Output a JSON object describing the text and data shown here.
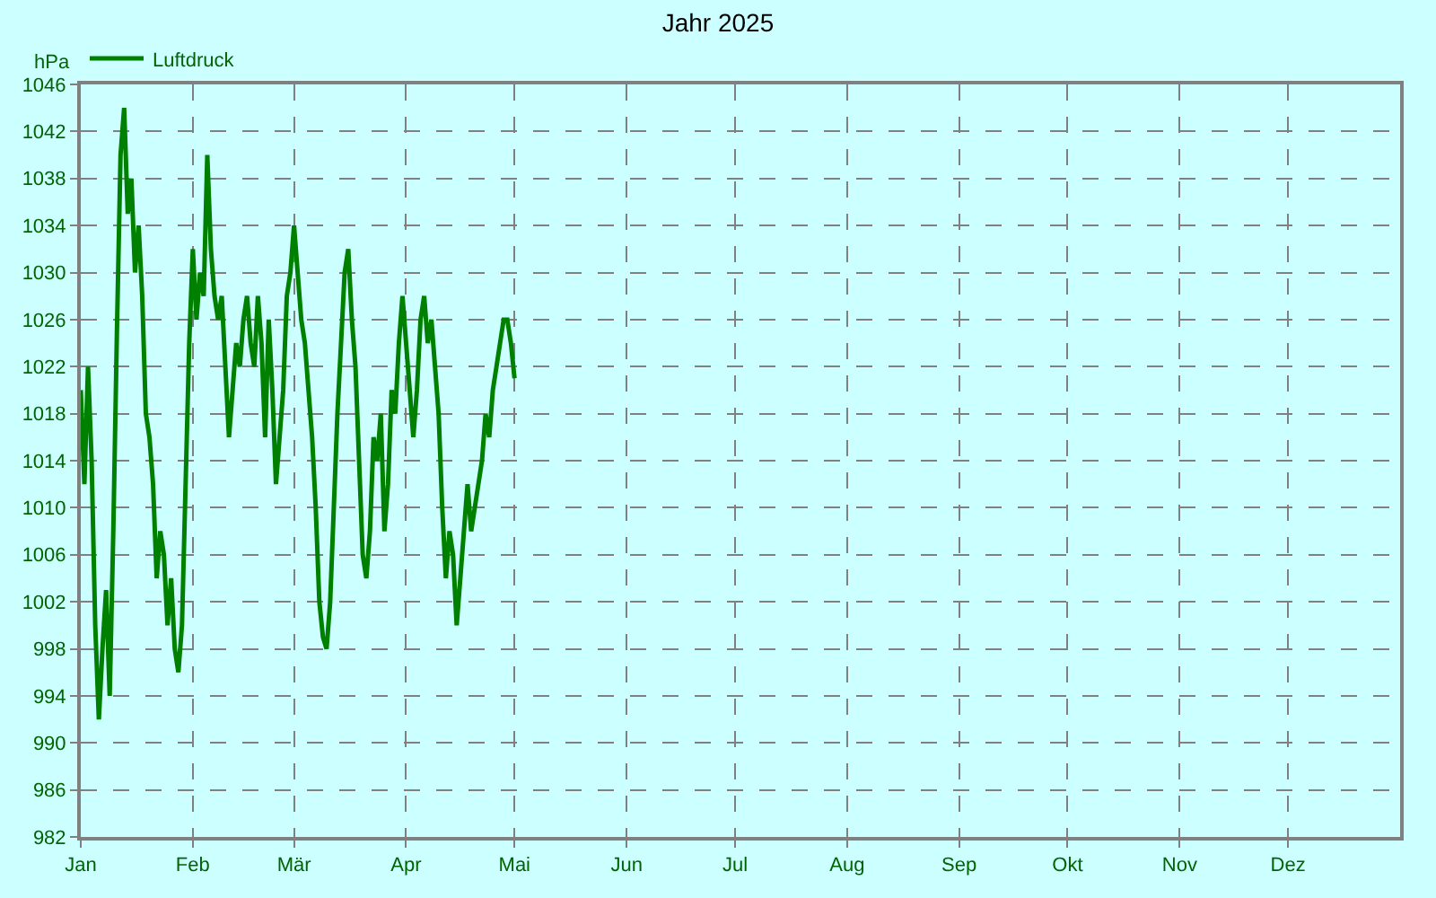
{
  "chart_data": {
    "type": "line",
    "title": "Jahr 2025",
    "ylabel": "hPa",
    "x": [
      "2025-01-01",
      "2025-01-02",
      "2025-01-03",
      "2025-01-04",
      "2025-01-05",
      "2025-01-06",
      "2025-01-07",
      "2025-01-08",
      "2025-01-09",
      "2025-01-10",
      "2025-01-11",
      "2025-01-12",
      "2025-01-13",
      "2025-01-14",
      "2025-01-15",
      "2025-01-16",
      "2025-01-17",
      "2025-01-18",
      "2025-01-19",
      "2025-01-20",
      "2025-01-21",
      "2025-01-22",
      "2025-01-23",
      "2025-01-24",
      "2025-01-25",
      "2025-01-26",
      "2025-01-27",
      "2025-01-28",
      "2025-01-29",
      "2025-01-30",
      "2025-01-31",
      "2025-02-01",
      "2025-02-02",
      "2025-02-03",
      "2025-02-04",
      "2025-02-05",
      "2025-02-06",
      "2025-02-07",
      "2025-02-08",
      "2025-02-09",
      "2025-02-10",
      "2025-02-11",
      "2025-02-12",
      "2025-02-13",
      "2025-02-14",
      "2025-02-15",
      "2025-02-16",
      "2025-02-17",
      "2025-02-18",
      "2025-02-19",
      "2025-02-20",
      "2025-02-21",
      "2025-02-22",
      "2025-02-23",
      "2025-02-24",
      "2025-02-25",
      "2025-02-26",
      "2025-02-27",
      "2025-02-28",
      "2025-03-01",
      "2025-03-02",
      "2025-03-03",
      "2025-03-04",
      "2025-03-05",
      "2025-03-06",
      "2025-03-07",
      "2025-03-08",
      "2025-03-09",
      "2025-03-10",
      "2025-03-11",
      "2025-03-12",
      "2025-03-13",
      "2025-03-14",
      "2025-03-15",
      "2025-03-16",
      "2025-03-17",
      "2025-03-18",
      "2025-03-19",
      "2025-03-20",
      "2025-03-21",
      "2025-03-22",
      "2025-03-23",
      "2025-03-24",
      "2025-03-25",
      "2025-03-26",
      "2025-03-27",
      "2025-03-28",
      "2025-03-29",
      "2025-03-30",
      "2025-03-31",
      "2025-04-01",
      "2025-04-02",
      "2025-04-03",
      "2025-04-04",
      "2025-04-05",
      "2025-04-06",
      "2025-04-07",
      "2025-04-08",
      "2025-04-09",
      "2025-04-10",
      "2025-04-11",
      "2025-04-12",
      "2025-04-13",
      "2025-04-14",
      "2025-04-15",
      "2025-04-16",
      "2025-04-17",
      "2025-04-18",
      "2025-04-19",
      "2025-04-20",
      "2025-04-21",
      "2025-04-22",
      "2025-04-23",
      "2025-04-24",
      "2025-04-25",
      "2025-04-26",
      "2025-04-27",
      "2025-04-28",
      "2025-04-29",
      "2025-04-30",
      "2025-05-01"
    ],
    "series": [
      {
        "name": "Luftdruck",
        "color": "#008000",
        "values": [
          1020,
          1012,
          1022,
          1014,
          1000,
          992,
          998,
          1003,
          994,
          1008,
          1025,
          1040,
          1044,
          1035,
          1038,
          1030,
          1034,
          1028,
          1018,
          1016,
          1012,
          1004,
          1008,
          1006,
          1000,
          1004,
          998,
          996,
          1000,
          1012,
          1024,
          1032,
          1026,
          1030,
          1028,
          1040,
          1032,
          1028,
          1026,
          1028,
          1022,
          1016,
          1020,
          1024,
          1022,
          1026,
          1028,
          1024,
          1022,
          1028,
          1024,
          1016,
          1026,
          1020,
          1012,
          1016,
          1020,
          1028,
          1030,
          1034,
          1030,
          1026,
          1024,
          1020,
          1016,
          1010,
          1002,
          999,
          998,
          1002,
          1010,
          1018,
          1024,
          1030,
          1032,
          1026,
          1022,
          1014,
          1006,
          1004,
          1008,
          1016,
          1014,
          1018,
          1008,
          1012,
          1020,
          1018,
          1024,
          1028,
          1024,
          1020,
          1016,
          1020,
          1026,
          1028,
          1024,
          1026,
          1022,
          1018,
          1010,
          1004,
          1008,
          1006,
          1000,
          1004,
          1008,
          1012,
          1008,
          1010,
          1012,
          1014,
          1018,
          1016,
          1020,
          1022,
          1024,
          1026,
          1026,
          1024,
          1021
        ]
      }
    ],
    "xlim": [
      "2025-01-01",
      "2026-01-01"
    ],
    "xticks": [
      {
        "value": "2025-01-01",
        "label": "Jan"
      },
      {
        "value": "2025-02-01",
        "label": "Feb"
      },
      {
        "value": "2025-03-01",
        "label": "Mär"
      },
      {
        "value": "2025-04-01",
        "label": "Apr"
      },
      {
        "value": "2025-05-01",
        "label": "Mai"
      },
      {
        "value": "2025-06-01",
        "label": "Jun"
      },
      {
        "value": "2025-07-01",
        "label": "Jul"
      },
      {
        "value": "2025-08-01",
        "label": "Aug"
      },
      {
        "value": "2025-09-01",
        "label": "Sep"
      },
      {
        "value": "2025-10-01",
        "label": "Okt"
      },
      {
        "value": "2025-11-01",
        "label": "Nov"
      },
      {
        "value": "2025-12-01",
        "label": "Dez"
      }
    ],
    "ylim": [
      982,
      1046
    ],
    "yticks": [
      982,
      986,
      990,
      994,
      998,
      1002,
      1006,
      1010,
      1014,
      1018,
      1022,
      1026,
      1030,
      1034,
      1038,
      1042,
      1046
    ],
    "grid": true,
    "legend": "top left",
    "marker": "none",
    "line_style": "solid"
  }
}
